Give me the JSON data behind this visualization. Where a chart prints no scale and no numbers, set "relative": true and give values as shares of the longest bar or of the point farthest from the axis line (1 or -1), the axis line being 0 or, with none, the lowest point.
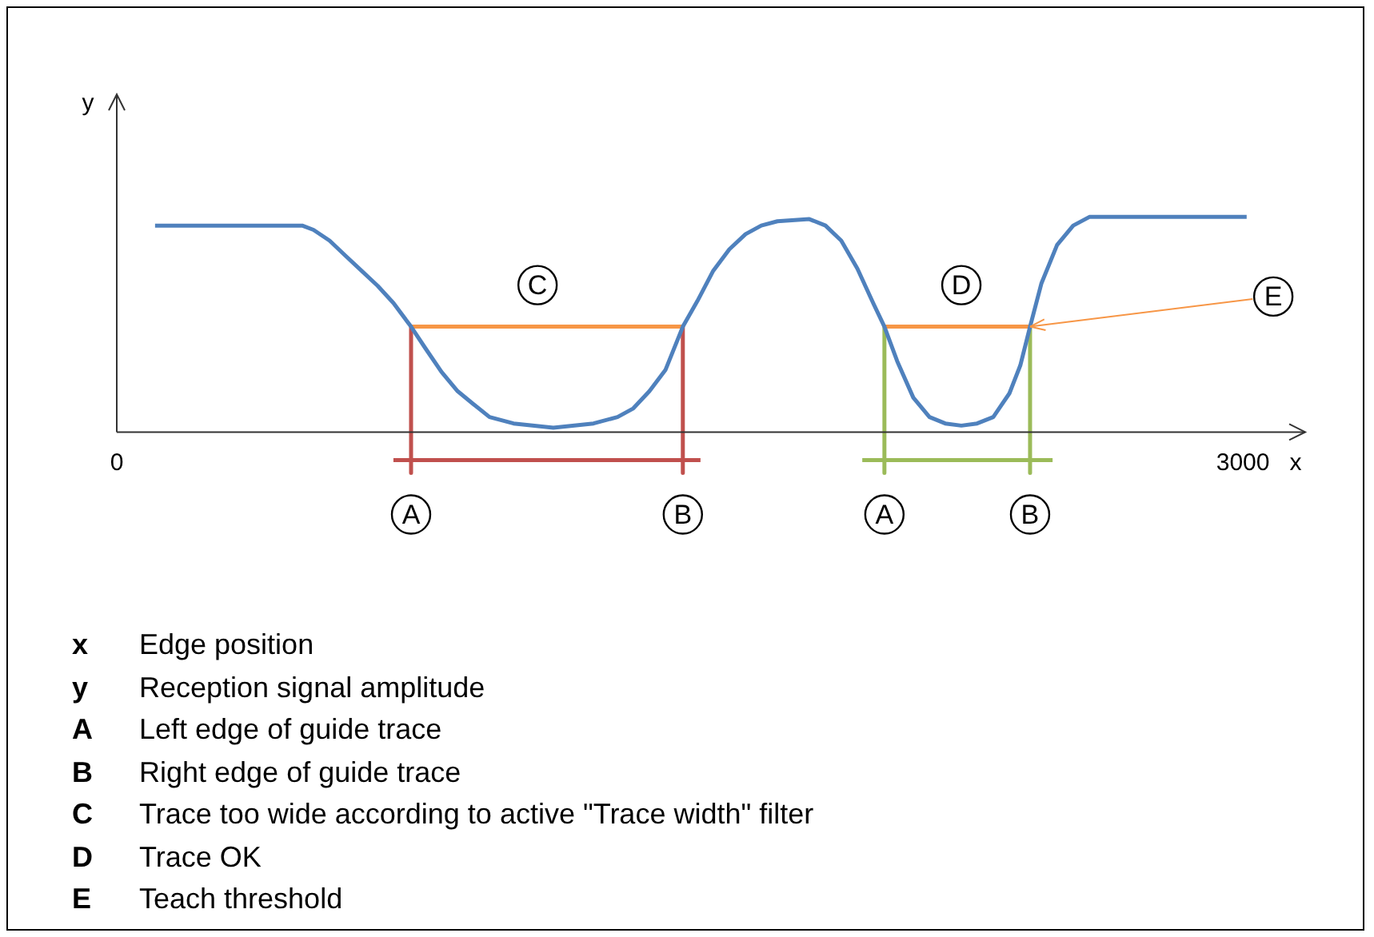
{
  "chart_data": {
    "type": "line",
    "relative": true,
    "marker": "none",
    "xlabel": "x",
    "ylabel": "y",
    "xlim": [
      0,
      3166
    ],
    "xticks": [
      0,
      3000
    ],
    "ref_lines": [
      {
        "axis": "x",
        "value": 0,
        "color": "#333333"
      }
    ],
    "series": [
      {
        "color": "#4f81bd",
        "x": [
          102,
          494,
          524,
          567,
          609,
          652,
          695,
          737,
          784,
          822,
          865,
          908,
          950,
          993,
          1057,
          1163,
          1270,
          1334,
          1376,
          1419,
          1462,
          1508,
          1547,
          1589,
          1632,
          1675,
          1717,
          1760,
          1845,
          1888,
          1930,
          1973,
          2015,
          2045,
          2079,
          2122,
          2165,
          2207,
          2250,
          2292,
          2335,
          2378,
          2407,
          2433,
          2463,
          2505,
          2548,
          2591,
          2633,
          3010
        ],
        "values": [
          0.96,
          0.96,
          0.94,
          0.89,
          0.82,
          0.75,
          0.68,
          0.6,
          0.49,
          0.39,
          0.28,
          0.19,
          0.13,
          0.07,
          0.04,
          0.02,
          0.04,
          0.07,
          0.11,
          0.19,
          0.29,
          0.49,
          0.61,
          0.75,
          0.85,
          0.92,
          0.96,
          0.98,
          0.99,
          0.96,
          0.89,
          0.76,
          0.6,
          0.49,
          0.33,
          0.16,
          0.07,
          0.04,
          0.03,
          0.04,
          0.07,
          0.18,
          0.31,
          0.49,
          0.69,
          0.87,
          0.96,
          1,
          1,
          1
        ]
      },
      {
        "color": "#f79646",
        "x": [
          784,
          1508
        ],
        "values": [
          0.49,
          0.49
        ]
      },
      {
        "color": "#f79646",
        "x": [
          2045,
          2433
        ],
        "values": [
          0.49,
          0.49
        ]
      },
      {
        "color": "#c0504d",
        "x": [
          784,
          784
        ],
        "values": [
          0.49,
          -0.19
        ]
      },
      {
        "color": "#c0504d",
        "x": [
          737,
          1555
        ],
        "values": [
          -0.13,
          -0.13
        ]
      },
      {
        "color": "#c0504d",
        "x": [
          1508,
          1508
        ],
        "values": [
          0.49,
          -0.19
        ]
      },
      {
        "color": "#9bbb59",
        "x": [
          2045,
          2045
        ],
        "values": [
          0.49,
          -0.19
        ]
      },
      {
        "color": "#9bbb59",
        "x": [
          1986,
          2493
        ],
        "values": [
          -0.13,
          -0.13
        ]
      },
      {
        "color": "#9bbb59",
        "x": [
          2433,
          2433
        ],
        "values": [
          0.49,
          -0.19
        ]
      }
    ],
    "annotations": [
      {
        "text": "A",
        "x": 784,
        "y": -0.19
      },
      {
        "text": "B",
        "x": 1508,
        "y": -0.19
      },
      {
        "text": "A",
        "x": 2045,
        "y": -0.19
      },
      {
        "text": "B",
        "x": 2433,
        "y": -0.19
      },
      {
        "text": "C",
        "x": 1121,
        "y": 0.49
      },
      {
        "text": "D",
        "x": 2250,
        "y": 0.49
      },
      {
        "text": "E",
        "x": 3081,
        "y": 0.63
      },
      "x Edge position",
      "y Reception signal amplitude",
      "A Left edge of guide trace",
      "B Right edge of guide trace",
      "C Trace too wide according to active \"Trace width\" filter",
      "D Trace OK",
      "E Teach threshold"
    ]
  }
}
